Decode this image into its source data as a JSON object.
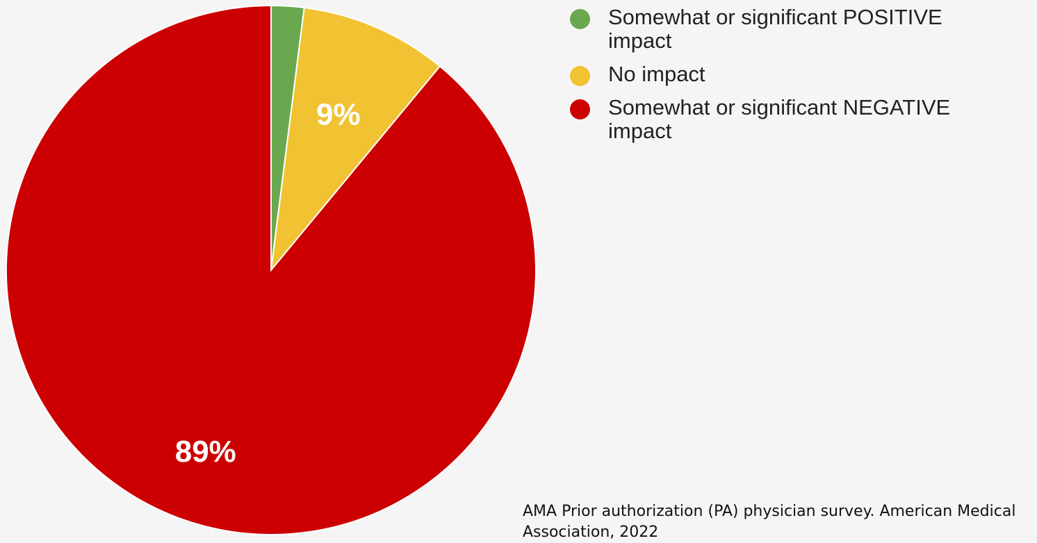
{
  "chart_data": {
    "type": "pie",
    "slices": [
      {
        "label": "Somewhat or significant POSITIVE impact",
        "value": 2,
        "color": "#6aa84f",
        "data_label": ""
      },
      {
        "label": "No impact",
        "value": 9,
        "color": "#f1c232",
        "data_label": "9%"
      },
      {
        "label": "Somewhat or significant NEGATIVE impact",
        "value": 89,
        "color": "#cc0000",
        "data_label": "89%"
      }
    ],
    "legend_position": "top-right"
  },
  "source": "AMA Prior authorization (PA) physician survey. American Medical Association, 2022"
}
